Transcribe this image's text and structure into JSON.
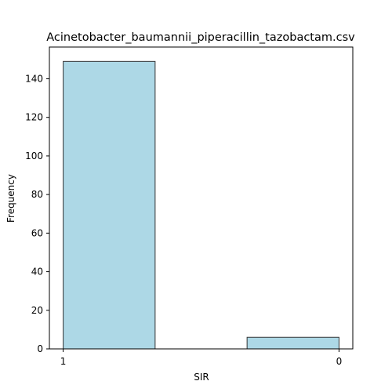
{
  "chart_data": {
    "type": "bar",
    "title": "Acinetobacter_baumannii_piperacillin_tazobactam.csv",
    "xlabel": "SIR",
    "ylabel": "Frequency",
    "categories": [
      "1",
      "0"
    ],
    "values": [
      149,
      6
    ],
    "ylim": [
      0,
      156.45
    ],
    "yticks": [
      0,
      20,
      40,
      60,
      80,
      100,
      120,
      140
    ],
    "grid": false,
    "colors": {
      "bar_fill": "#add8e6",
      "bar_edge": "#333333",
      "axis": "#000000"
    }
  }
}
